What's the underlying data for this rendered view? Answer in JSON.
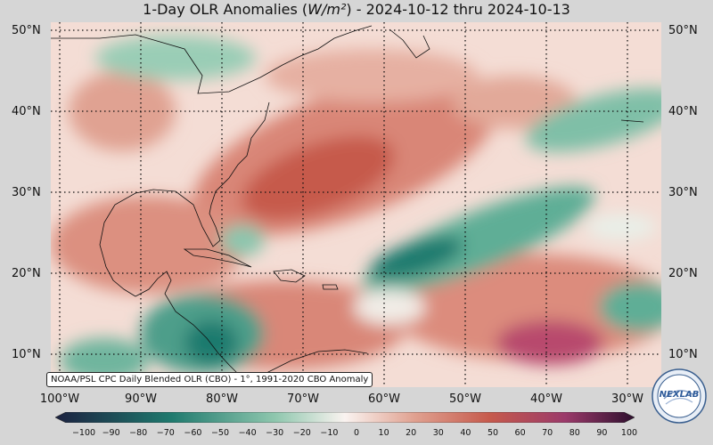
{
  "title": {
    "prefix": "1-Day OLR Anomalies (",
    "unit": "W/m²",
    "suffix": ") - 2024-10-12 thru 2024-10-13"
  },
  "source_note": "NOAA/PSL CPC Daily Blended OLR (CBO) - 1°, 1991-2020 CBO Anomaly",
  "lat_labels": [
    "50°N",
    "40°N",
    "30°N",
    "20°N",
    "10°N"
  ],
  "lon_labels": [
    "100°W",
    "90°W",
    "80°W",
    "70°W",
    "60°W",
    "50°W",
    "40°W",
    "30°W"
  ],
  "colorbar": {
    "ticks": [
      "−100",
      "−90",
      "−80",
      "−70",
      "−60",
      "−50",
      "−40",
      "−30",
      "−20",
      "−10",
      "0",
      "10",
      "20",
      "30",
      "40",
      "50",
      "60",
      "70",
      "80",
      "90",
      "100"
    ],
    "negative_color": "#1f7a6e",
    "neutral_color": "#faf3f0",
    "positive_color": "#c65a4c",
    "extreme_negative_color": "#1c2140",
    "extreme_positive_color": "#2e0f2e"
  },
  "logo_text": "NEXLAB"
}
